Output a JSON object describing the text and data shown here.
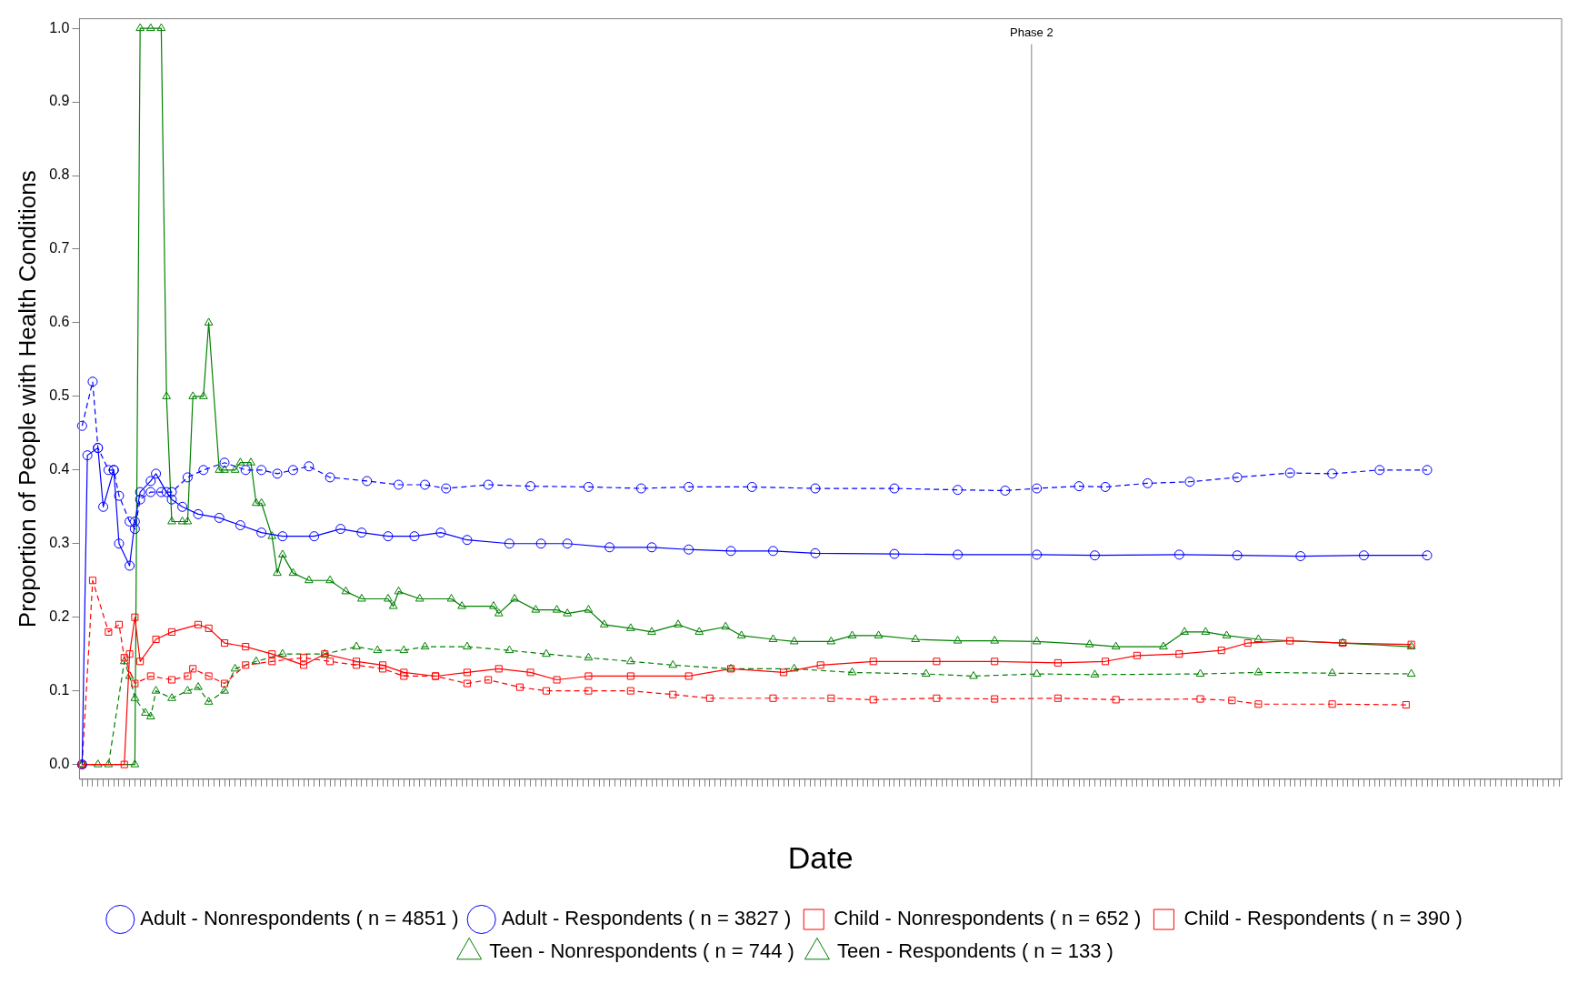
{
  "chart_data": {
    "type": "line",
    "xlabel": "Date",
    "ylabel": "Proportion of People with Health Conditions",
    "categories": [
      null,
      null,
      null,
      null,
      null,
      null,
      null,
      null,
      null,
      null,
      null,
      null,
      null,
      null,
      null,
      null,
      null,
      null,
      null,
      null,
      null,
      null,
      null,
      null,
      null,
      null,
      null,
      null,
      null,
      null,
      null,
      null,
      null,
      null,
      null,
      null,
      null,
      null,
      null,
      null,
      null,
      null,
      null,
      null,
      null,
      null,
      null,
      null,
      null,
      null,
      null,
      null,
      null,
      null,
      null,
      null,
      null,
      null,
      null,
      null,
      null,
      null,
      null,
      null,
      null,
      null,
      null,
      null,
      null,
      null,
      null,
      null,
      null,
      null,
      null,
      null,
      null,
      null,
      null,
      null,
      null,
      null,
      null,
      null,
      null,
      null,
      null,
      null,
      null,
      null,
      null,
      null,
      null,
      null,
      null,
      null,
      null,
      null,
      null,
      null,
      null,
      null,
      null,
      null,
      null,
      null,
      null,
      null,
      null,
      null,
      null,
      null,
      null,
      null,
      null,
      null,
      null,
      null,
      null,
      null,
      null,
      null,
      null,
      null,
      null,
      null,
      null,
      null,
      null,
      null,
      null,
      null,
      null,
      null,
      null,
      null,
      null,
      null,
      null,
      null,
      null,
      null,
      null,
      null,
      null,
      null,
      null,
      null,
      null,
      null,
      null,
      null,
      null,
      null,
      null,
      null,
      null,
      null,
      null,
      null,
      null,
      null,
      null,
      null,
      null,
      null,
      null,
      null,
      null,
      null,
      null,
      null,
      null,
      null,
      null,
      null,
      null,
      null,
      null,
      null,
      null,
      null,
      null,
      null,
      null,
      null,
      null,
      null,
      null,
      null,
      null,
      null,
      null,
      null,
      null,
      null,
      null,
      null,
      null,
      null,
      null,
      null,
      null,
      null,
      null,
      null,
      null,
      null,
      null,
      null,
      null,
      null,
      null,
      null,
      null,
      null,
      null,
      null,
      null,
      null,
      null,
      null,
      null,
      null,
      null,
      null,
      null,
      null,
      null,
      null,
      null,
      null,
      null,
      null,
      null,
      null,
      null,
      null,
      null,
      null,
      null,
      null,
      null,
      null,
      null,
      null,
      null,
      null,
      null,
      null,
      null,
      null,
      null,
      null,
      null,
      null,
      null,
      null,
      null,
      null,
      null,
      null,
      null,
      null,
      null,
      null,
      null,
      null,
      null,
      null,
      null,
      null,
      null,
      null,
      null,
      null,
      null,
      null,
      null,
      null,
      null
    ],
    "ylim": [
      -0.02,
      1.013
    ],
    "yticks": [
      {
        "value": 0,
        "label": "0.0"
      },
      {
        "value": 0.1,
        "label": "0.1"
      },
      {
        "value": 0.2,
        "label": "0.2"
      },
      {
        "value": 0.3,
        "label": "0.3"
      },
      {
        "value": 0.4,
        "label": "0.4"
      },
      {
        "value": 0.5,
        "label": "0.5"
      },
      {
        "value": 0.6,
        "label": "0.6"
      },
      {
        "value": 0.7,
        "label": "0.7"
      },
      {
        "value": 0.8,
        "label": "0.8"
      },
      {
        "value": 0.9,
        "label": "0.9"
      },
      {
        "value": 1,
        "label": "1.0"
      }
    ],
    "grid": false,
    "legend": "bottom",
    "annotations": [
      "Phase 2"
    ],
    "series": [
      {
        "name": "Adult - Nonrespondents ( n = 4851 )",
        "color": "#0000ff",
        "marker": "circle",
        "line_style": "dashed",
        "values": [
          0.46,
          null,
          0.52,
          0.43,
          null,
          0.4,
          0.4,
          0.365,
          null,
          0.33,
          0.32,
          0.36,
          null,
          0.37,
          null,
          0.37,
          null,
          0.37,
          null,
          null,
          0.39,
          null,
          null,
          0.4,
          null,
          null,
          null,
          0.41,
          null,
          null,
          null,
          0.4,
          null,
          null,
          0.4,
          null,
          null,
          0.395,
          null,
          null,
          0.4,
          null,
          null,
          0.405,
          null,
          null,
          null,
          0.39,
          null,
          null,
          null,
          null,
          null,
          null,
          0.385,
          null,
          null,
          null,
          null,
          null,
          0.38,
          null,
          null,
          null,
          null,
          0.38,
          null,
          null,
          null,
          0.375,
          null,
          null,
          null,
          null,
          null,
          null,
          null,
          0.38,
          null,
          null,
          null,
          null,
          null,
          null,
          null,
          0.378,
          null,
          null,
          null,
          null,
          null,
          null,
          null,
          null,
          null,
          null,
          0.377,
          null,
          null,
          null,
          null,
          null,
          null,
          null,
          null,
          null,
          0.375,
          null,
          null,
          null,
          null,
          null,
          null,
          null,
          null,
          0.377,
          null,
          null,
          null,
          null,
          null,
          null,
          null,
          null,
          null,
          null,
          null,
          0.377,
          null,
          null,
          null,
          null,
          null,
          null,
          null,
          null,
          null,
          null,
          null,
          0.375,
          null,
          null,
          null,
          null,
          null,
          null,
          null,
          null,
          null,
          null,
          null,
          null,
          null,
          null,
          0.375,
          null,
          null,
          null,
          null,
          null,
          null,
          null,
          null,
          null,
          null,
          null,
          0.373,
          null,
          null,
          null,
          null,
          null,
          null,
          null,
          null,
          0.372,
          null,
          null,
          null,
          null,
          null,
          0.375,
          null,
          null,
          null,
          null,
          null,
          null,
          null,
          0.378,
          null,
          null,
          null,
          null,
          0.377,
          null,
          null,
          null,
          null,
          null,
          null,
          null,
          0.382,
          null,
          null,
          null,
          null,
          null,
          null,
          null,
          0.384,
          null,
          null,
          null,
          null,
          null,
          null,
          null,
          null,
          0.39,
          null,
          null,
          null,
          null,
          null,
          null,
          null,
          null,
          null,
          0.396,
          null,
          null,
          null,
          null,
          null,
          null,
          null,
          0.395,
          null,
          null,
          null,
          null,
          null,
          null,
          null,
          null,
          0.4,
          null,
          null,
          null,
          null,
          null,
          null,
          null,
          null,
          0.4,
          null,
          null,
          null,
          null,
          null,
          null,
          null,
          null,
          null,
          null,
          null,
          null,
          null,
          null,
          null,
          null,
          null,
          null,
          null,
          null,
          null,
          null,
          null,
          null,
          null
        ]
      },
      {
        "name": "Adult - Respondents ( n = 3827 )",
        "color": "#0000ff",
        "marker": "circle",
        "line_style": "solid",
        "values": [
          0,
          0.42,
          null,
          0.43,
          0.35,
          null,
          0.4,
          0.3,
          null,
          0.27,
          0.33,
          0.37,
          null,
          0.385,
          0.395,
          null,
          0.37,
          0.36,
          null,
          0.35,
          null,
          null,
          0.34,
          null,
          null,
          null,
          0.335,
          null,
          null,
          null,
          0.325,
          null,
          null,
          null,
          0.315,
          null,
          null,
          null,
          0.31,
          null,
          null,
          null,
          null,
          null,
          0.31,
          null,
          null,
          null,
          null,
          0.32,
          null,
          null,
          null,
          0.315,
          null,
          null,
          null,
          null,
          0.31,
          null,
          null,
          null,
          null,
          0.31,
          null,
          null,
          null,
          null,
          0.315,
          null,
          null,
          null,
          null,
          0.305,
          null,
          null,
          null,
          null,
          null,
          null,
          null,
          0.3,
          null,
          null,
          null,
          null,
          null,
          0.3,
          null,
          null,
          null,
          null,
          0.3,
          null,
          null,
          null,
          null,
          null,
          null,
          null,
          0.295,
          null,
          null,
          null,
          null,
          null,
          null,
          null,
          0.295,
          null,
          null,
          null,
          null,
          null,
          null,
          0.292,
          null,
          null,
          null,
          null,
          null,
          null,
          null,
          0.29,
          null,
          null,
          null,
          null,
          null,
          null,
          null,
          0.29,
          null,
          null,
          null,
          null,
          null,
          null,
          null,
          0.287,
          null,
          null,
          null,
          null,
          null,
          null,
          null,
          null,
          null,
          null,
          null,
          null,
          null,
          null,
          0.286,
          null,
          null,
          null,
          null,
          null,
          null,
          null,
          null,
          null,
          null,
          null,
          0.285,
          null,
          null,
          null,
          null,
          null,
          null,
          null,
          null,
          null,
          null,
          null,
          null,
          null,
          null,
          0.285,
          null,
          null,
          null,
          null,
          null,
          null,
          null,
          null,
          null,
          null,
          0.284,
          null,
          null,
          null,
          null,
          null,
          null,
          null,
          null,
          null,
          null,
          null,
          null,
          null,
          null,
          null,
          0.285,
          null,
          null,
          null,
          null,
          null,
          null,
          null,
          null,
          null,
          null,
          0.284,
          null,
          null,
          null,
          null,
          null,
          null,
          null,
          null,
          null,
          null,
          null,
          0.283,
          null,
          null,
          null,
          null,
          null,
          null,
          null,
          null,
          null,
          null,
          null,
          0.284,
          null,
          null,
          null,
          null,
          null,
          null,
          null,
          null,
          null,
          null,
          null,
          0.284,
          null,
          null,
          null,
          null,
          null,
          null,
          null,
          null,
          null,
          null,
          null,
          null,
          null,
          null,
          null,
          null,
          null,
          null,
          null,
          null,
          null,
          null,
          null,
          null,
          null
        ]
      },
      {
        "name": "Child - Nonrespondents ( n = 652 )",
        "color": "#ff0000",
        "marker": "square",
        "line_style": "dashed",
        "values": [
          0,
          null,
          0.25,
          null,
          null,
          0.18,
          null,
          0.19,
          0.145,
          null,
          0.11,
          null,
          null,
          0.12,
          null,
          null,
          null,
          0.115,
          null,
          null,
          0.12,
          0.13,
          null,
          null,
          0.12,
          null,
          null,
          0.11,
          null,
          null,
          null,
          0.135,
          null,
          null,
          null,
          null,
          0.14,
          null,
          null,
          null,
          null,
          null,
          0.145,
          null,
          null,
          null,
          null,
          0.14,
          null,
          null,
          null,
          null,
          0.135,
          null,
          null,
          null,
          null,
          0.13,
          null,
          null,
          null,
          0.12,
          null,
          null,
          null,
          null,
          null,
          0.12,
          null,
          null,
          null,
          null,
          null,
          0.11,
          null,
          null,
          null,
          0.115,
          null,
          null,
          null,
          null,
          null,
          0.105,
          null,
          null,
          null,
          null,
          0.1,
          null,
          null,
          null,
          null,
          null,
          null,
          null,
          0.1,
          null,
          null,
          null,
          null,
          null,
          null,
          null,
          0.1,
          null,
          null,
          null,
          null,
          null,
          null,
          null,
          0.095,
          null,
          null,
          null,
          null,
          null,
          null,
          0.09,
          null,
          null,
          null,
          null,
          null,
          null,
          null,
          null,
          null,
          null,
          null,
          0.09,
          null,
          null,
          null,
          null,
          null,
          null,
          null,
          null,
          null,
          null,
          0.09,
          null,
          null,
          null,
          null,
          null,
          null,
          null,
          0.088,
          null,
          null,
          null,
          null,
          null,
          null,
          null,
          null,
          null,
          null,
          null,
          0.09,
          null,
          null,
          null,
          null,
          null,
          null,
          null,
          null,
          null,
          null,
          0.089,
          null,
          null,
          null,
          null,
          null,
          null,
          null,
          null,
          null,
          null,
          null,
          0.09,
          null,
          null,
          null,
          null,
          null,
          null,
          null,
          null,
          null,
          null,
          0.088,
          null,
          null,
          null,
          null,
          null,
          null,
          null,
          null,
          null,
          null,
          null,
          null,
          null,
          null,
          null,
          0.089,
          null,
          null,
          null,
          null,
          null,
          0.087,
          null,
          null,
          null,
          null,
          0.082,
          null,
          null,
          null,
          null,
          null,
          null,
          null,
          null,
          null,
          null,
          null,
          null,
          null,
          0.082,
          null,
          null,
          null,
          null,
          null,
          null,
          null,
          null,
          null,
          null,
          null,
          null,
          null,
          0.081,
          null,
          null,
          null,
          null,
          null,
          null,
          null,
          null,
          null,
          null,
          null,
          null,
          null,
          null,
          null,
          null,
          null,
          null,
          null,
          null,
          null,
          null,
          null,
          null,
          null,
          null,
          null,
          null,
          null
        ]
      },
      {
        "name": "Child - Respondents ( n = 390 )",
        "color": "#ff0000",
        "marker": "square",
        "line_style": "solid",
        "values": [
          0,
          null,
          null,
          null,
          null,
          null,
          null,
          null,
          0,
          0.15,
          0.2,
          0.14,
          null,
          null,
          0.17,
          null,
          null,
          0.18,
          null,
          null,
          null,
          null,
          0.19,
          null,
          0.185,
          null,
          null,
          0.165,
          null,
          null,
          null,
          0.16,
          null,
          null,
          null,
          null,
          0.15,
          null,
          null,
          null,
          null,
          null,
          0.135,
          null,
          null,
          null,
          0.15,
          null,
          null,
          null,
          null,
          null,
          0.14,
          null,
          null,
          null,
          null,
          0.135,
          null,
          null,
          null,
          0.125,
          null,
          null,
          null,
          null,
          null,
          0.12,
          null,
          null,
          null,
          null,
          null,
          0.125,
          null,
          null,
          null,
          null,
          null,
          0.13,
          null,
          null,
          null,
          null,
          null,
          0.125,
          null,
          null,
          null,
          null,
          0.115,
          null,
          null,
          null,
          null,
          null,
          0.12,
          null,
          null,
          null,
          null,
          null,
          null,
          null,
          0.12,
          null,
          null,
          null,
          null,
          null,
          null,
          null,
          null,
          null,
          null,
          0.12,
          null,
          null,
          null,
          null,
          null,
          null,
          null,
          0.13,
          null,
          null,
          null,
          null,
          null,
          null,
          null,
          null,
          null,
          0.125,
          null,
          null,
          null,
          null,
          null,
          null,
          0.135,
          null,
          null,
          null,
          null,
          null,
          null,
          null,
          null,
          null,
          0.14,
          null,
          null,
          null,
          null,
          null,
          null,
          null,
          null,
          null,
          null,
          null,
          0.14,
          null,
          null,
          null,
          null,
          null,
          null,
          null,
          null,
          null,
          null,
          0.14,
          null,
          null,
          null,
          null,
          null,
          null,
          null,
          null,
          null,
          null,
          null,
          0.138,
          null,
          null,
          null,
          null,
          null,
          null,
          null,
          null,
          0.14,
          null,
          null,
          null,
          null,
          null,
          0.148,
          null,
          null,
          null,
          null,
          null,
          null,
          null,
          0.15,
          null,
          null,
          null,
          null,
          null,
          null,
          null,
          0.155,
          null,
          null,
          null,
          null,
          0.165,
          null,
          null,
          null,
          null,
          null,
          null,
          null,
          0.168,
          null,
          null,
          null,
          null,
          null,
          null,
          null,
          null,
          null,
          0.165,
          null,
          null,
          null,
          null,
          null,
          null,
          null,
          null,
          null,
          null,
          null,
          null,
          0.163,
          null,
          null,
          null,
          null,
          null,
          null,
          null,
          null,
          null,
          null,
          null,
          null,
          null,
          null,
          null,
          null,
          null,
          null,
          null,
          null,
          null,
          null,
          null,
          null,
          null,
          null,
          null,
          null
        ]
      },
      {
        "name": "Teen - Nonrespondents ( n = 744 )",
        "color": "#008000",
        "marker": "triangle",
        "line_style": "dashed",
        "values": [
          0,
          null,
          null,
          0,
          null,
          0,
          null,
          null,
          0.14,
          0.12,
          0.09,
          null,
          0.07,
          0.065,
          0.1,
          null,
          null,
          0.09,
          null,
          null,
          0.1,
          null,
          0.105,
          null,
          0.085,
          null,
          null,
          0.1,
          null,
          0.13,
          null,
          null,
          null,
          0.14,
          null,
          null,
          null,
          null,
          0.15,
          null,
          null,
          null,
          null,
          null,
          null,
          null,
          0.15,
          null,
          null,
          null,
          null,
          null,
          0.16,
          null,
          null,
          null,
          0.155,
          null,
          null,
          null,
          null,
          0.155,
          null,
          null,
          null,
          0.16,
          null,
          null,
          null,
          null,
          null,
          null,
          null,
          0.16,
          null,
          null,
          null,
          null,
          null,
          null,
          null,
          0.155,
          null,
          null,
          null,
          null,
          null,
          null,
          0.15,
          null,
          null,
          null,
          null,
          null,
          null,
          null,
          0.145,
          null,
          null,
          null,
          null,
          null,
          null,
          null,
          0.14,
          null,
          null,
          null,
          null,
          null,
          null,
          null,
          0.135,
          null,
          null,
          null,
          null,
          null,
          null,
          null,
          null,
          null,
          null,
          0.13,
          null,
          null,
          null,
          null,
          null,
          null,
          null,
          null,
          null,
          null,
          null,
          0.13,
          null,
          null,
          null,
          null,
          null,
          null,
          null,
          null,
          null,
          null,
          0.125,
          null,
          null,
          null,
          null,
          null,
          null,
          null,
          null,
          null,
          null,
          null,
          null,
          null,
          0.123,
          null,
          null,
          null,
          null,
          null,
          null,
          null,
          null,
          0.12,
          null,
          null,
          null,
          null,
          null,
          null,
          null,
          null,
          null,
          null,
          null,
          0.123,
          null,
          null,
          null,
          null,
          null,
          null,
          null,
          null,
          null,
          null,
          0.122,
          null,
          null,
          null,
          null,
          null,
          null,
          null,
          null,
          null,
          null,
          null,
          null,
          null,
          null,
          null,
          null,
          null,
          null,
          null,
          0.123,
          null,
          null,
          null,
          null,
          null,
          null,
          null,
          null,
          null,
          null,
          0.125,
          null,
          null,
          null,
          null,
          null,
          null,
          null,
          null,
          null,
          null,
          null,
          null,
          null,
          0.124,
          null,
          null,
          null,
          null,
          null,
          null,
          null,
          null,
          null,
          null,
          null,
          null,
          null,
          null,
          0.123,
          null,
          null,
          null,
          null,
          null,
          null,
          null,
          null,
          null,
          null,
          null,
          null,
          null,
          null,
          null,
          null,
          null,
          null,
          null,
          null,
          null,
          null,
          null,
          null,
          null,
          null,
          null,
          null
        ]
      },
      {
        "name": "Teen - Respondents ( n = 133 )",
        "color": "#008000",
        "marker": "triangle",
        "line_style": "solid",
        "values": [
          0,
          null,
          null,
          null,
          null,
          null,
          null,
          null,
          null,
          null,
          0,
          1,
          null,
          1,
          null,
          1,
          0.5,
          0.33,
          null,
          0.33,
          0.33,
          0.5,
          null,
          0.5,
          0.6,
          null,
          0.4,
          0.4,
          null,
          0.4,
          0.41,
          null,
          0.41,
          0.355,
          0.355,
          null,
          0.31,
          0.26,
          0.285,
          null,
          0.26,
          null,
          null,
          0.25,
          null,
          null,
          null,
          0.25,
          null,
          null,
          0.235,
          null,
          null,
          0.225,
          null,
          null,
          null,
          null,
          0.225,
          0.215,
          0.235,
          null,
          null,
          null,
          0.225,
          null,
          null,
          null,
          null,
          null,
          0.225,
          null,
          0.215,
          null,
          null,
          null,
          null,
          null,
          0.215,
          0.205,
          null,
          null,
          0.225,
          null,
          null,
          null,
          0.21,
          null,
          null,
          null,
          0.21,
          null,
          0.205,
          null,
          null,
          null,
          0.21,
          null,
          null,
          0.19,
          null,
          null,
          null,
          null,
          0.185,
          null,
          null,
          null,
          0.18,
          null,
          null,
          null,
          null,
          0.19,
          null,
          null,
          null,
          0.18,
          null,
          null,
          null,
          null,
          0.187,
          null,
          null,
          0.175,
          null,
          null,
          null,
          null,
          null,
          0.17,
          null,
          null,
          null,
          0.167,
          null,
          null,
          null,
          null,
          null,
          null,
          0.167,
          null,
          null,
          null,
          0.175,
          null,
          null,
          null,
          null,
          0.175,
          null,
          null,
          null,
          null,
          null,
          null,
          0.17,
          null,
          null,
          null,
          null,
          null,
          null,
          null,
          0.168,
          null,
          null,
          null,
          null,
          null,
          null,
          0.168,
          null,
          null,
          null,
          null,
          null,
          null,
          null,
          0.167,
          null,
          null,
          null,
          null,
          null,
          null,
          null,
          null,
          null,
          0.163,
          null,
          null,
          null,
          null,
          0.16,
          null,
          null,
          null,
          null,
          null,
          null,
          null,
          null,
          0.16,
          null,
          null,
          null,
          0.18,
          null,
          null,
          null,
          0.18,
          null,
          null,
          null,
          0.175,
          null,
          null,
          null,
          null,
          null,
          0.17,
          null,
          null,
          null,
          null,
          null,
          null,
          null,
          null,
          null,
          null,
          null,
          null,
          null,
          null,
          null,
          0.165,
          null,
          null,
          null,
          null,
          null,
          null,
          null,
          null,
          null,
          null,
          null,
          null,
          0.16,
          null,
          null,
          null,
          null,
          null,
          null,
          null,
          null,
          null,
          null,
          null,
          null,
          null,
          null,
          null,
          null,
          null,
          null,
          null,
          null,
          null,
          null,
          null,
          null,
          null,
          null,
          null,
          null
        ]
      }
    ]
  }
}
